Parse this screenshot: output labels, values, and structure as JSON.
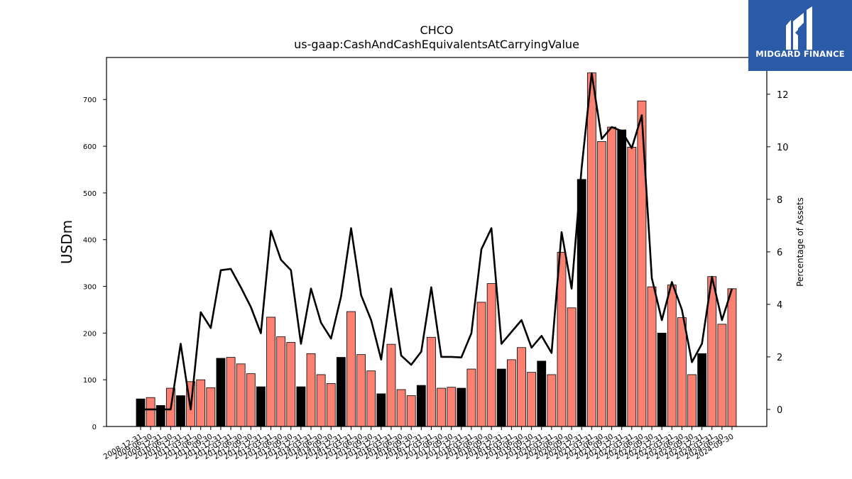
{
  "chart_data": {
    "type": "bar",
    "title": "CHCO",
    "subtitle": "us-gaap:CashAndCashEquivalentsAtCarryingValue",
    "ylabel": "USDm",
    "y2label": "Percentage of Assets",
    "ylim": [
      0,
      790
    ],
    "y2lim": [
      -0.65,
      13.4
    ],
    "yticks": [
      0,
      100,
      200,
      300,
      400,
      500,
      600,
      700
    ],
    "y2ticks": [
      0,
      2,
      4,
      6,
      8,
      10,
      12
    ],
    "colors": {
      "q4": "#000000",
      "other": "#fa8072",
      "line": "#000000"
    },
    "categories": [
      "2008-12-31",
      "2009-06-30",
      "2009-12-31",
      "2010-06-30",
      "2010-12-31",
      "2011-03-31",
      "2011-06-30",
      "2011-09-30",
      "2011-12-31",
      "2012-03-31",
      "2012-06-30",
      "2012-09-30",
      "2012-12-31",
      "2013-03-31",
      "2013-06-30",
      "2013-09-30",
      "2013-12-31",
      "2014-03-31",
      "2014-06-30",
      "2014-09-30",
      "2014-12-31",
      "2015-03-31",
      "2015-06-30",
      "2015-09-30",
      "2015-12-31",
      "2016-03-31",
      "2016-06-30",
      "2016-09-30",
      "2016-12-31",
      "2017-03-31",
      "2017-06-30",
      "2017-09-30",
      "2017-12-31",
      "2018-03-31",
      "2018-06-30",
      "2018-09-30",
      "2018-12-31",
      "2019-03-31",
      "2019-06-30",
      "2019-09-30",
      "2019-12-31",
      "2020-03-31",
      "2020-06-30",
      "2020-09-30",
      "2020-12-31",
      "2021-03-31",
      "2021-06-30",
      "2021-09-30",
      "2021-12-31",
      "2022-03-31",
      "2022-06-30",
      "2022-09-30",
      "2022-12-31",
      "2023-03-31",
      "2023-06-30",
      "2023-09-30",
      "2023-12-31",
      "2024-03-31",
      "2024-06-30",
      "2024-09-30"
    ],
    "series": [
      {
        "kind": "bar",
        "axis": "left",
        "values": [
          59,
          62,
          45,
          82,
          66,
          96,
          100,
          83,
          146,
          148,
          134,
          113,
          85,
          234,
          192,
          180,
          85,
          156,
          111,
          92,
          148,
          246,
          154,
          119,
          70,
          176,
          79,
          66,
          88,
          191,
          82,
          84,
          82,
          123,
          266,
          306,
          123,
          143,
          169,
          116,
          140,
          111,
          373,
          254,
          529,
          757,
          610,
          641,
          635,
          598,
          697,
          299,
          200,
          303,
          233,
          111,
          156,
          321,
          219,
          295
        ]
      },
      {
        "kind": "line",
        "axis": "right",
        "values": [
          0.0,
          0.0,
          0.0,
          0.0,
          2.5,
          0.0,
          3.7,
          3.1,
          5.3,
          5.35,
          4.65,
          3.9,
          2.9,
          6.8,
          5.7,
          5.3,
          2.5,
          4.6,
          3.3,
          2.7,
          4.3,
          6.9,
          4.35,
          3.4,
          1.9,
          4.6,
          2.05,
          1.7,
          2.2,
          4.65,
          2.0,
          2.0,
          1.98,
          2.9,
          6.1,
          6.9,
          2.5,
          2.95,
          3.4,
          2.35,
          2.8,
          2.15,
          6.75,
          4.6,
          9.2,
          12.8,
          10.3,
          10.75,
          10.6,
          9.95,
          11.2,
          5.0,
          3.4,
          4.85,
          3.8,
          1.8,
          2.5,
          5.05,
          3.4,
          4.6
        ]
      }
    ]
  },
  "brand": {
    "name": "MIDGARD FINANCE",
    "logo_icon": "midgard-logo-icon"
  }
}
